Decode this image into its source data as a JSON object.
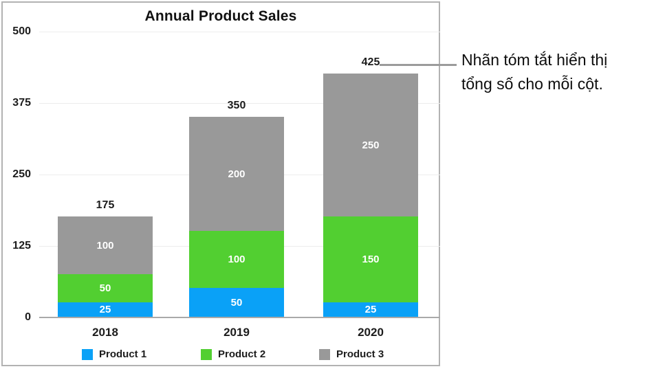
{
  "chart_data": {
    "type": "bar",
    "stacked": true,
    "title": "Annual Product Sales",
    "categories": [
      "2018",
      "2019",
      "2020"
    ],
    "series": [
      {
        "name": "Product 1",
        "color": "#0aa1f7",
        "values": [
          25,
          50,
          25
        ]
      },
      {
        "name": "Product 2",
        "color": "#52cf31",
        "values": [
          50,
          100,
          150
        ]
      },
      {
        "name": "Product 3",
        "color": "#999999",
        "values": [
          100,
          200,
          250
        ]
      }
    ],
    "totals": [
      175,
      350,
      425
    ],
    "yticks": [
      0,
      125,
      250,
      375,
      500
    ],
    "ylim": [
      0,
      500
    ],
    "xlabel": "",
    "ylabel": "",
    "grid": true,
    "legend_position": "bottom",
    "value_labels_inside_segments": true,
    "summary_labels_above_bars": true
  },
  "annotation": {
    "lines": [
      "Nhãn tóm tắt hiển thị",
      "tổng số cho mỗi cột."
    ]
  },
  "style_colors": {
    "grid": "#ececec",
    "axis_baseline": "#a9a9a9",
    "panel_border": "#b2b2b2",
    "callout_line": "#9b9b9b",
    "segment_label_text": "#ffffff"
  }
}
